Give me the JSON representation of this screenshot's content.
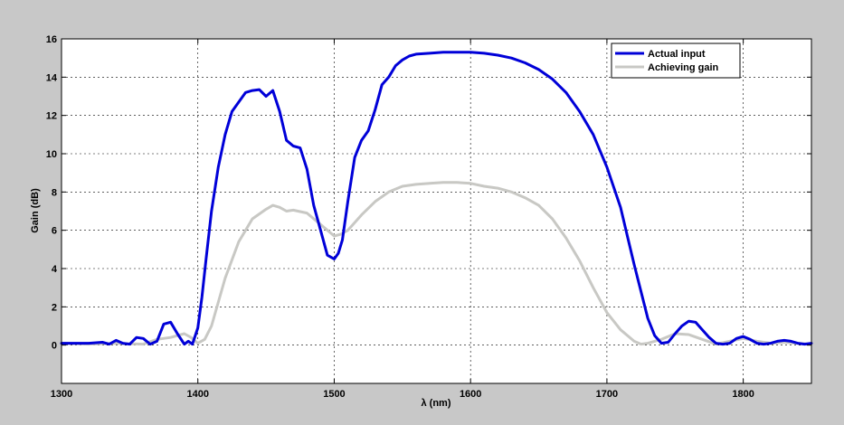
{
  "chart_data": {
    "type": "line",
    "title": "",
    "xlabel": "λ (nm)",
    "ylabel": "Gain (dB)",
    "xlim": [
      1300,
      1850
    ],
    "ylim": [
      -2,
      16
    ],
    "xticks": [
      1300,
      1400,
      1500,
      1600,
      1700,
      1800
    ],
    "yticks": [
      0,
      2,
      4,
      6,
      8,
      10,
      12,
      14,
      16
    ],
    "grid": true,
    "legend_position": "top-right",
    "series": [
      {
        "name": "Actual input",
        "color": "#0000d8",
        "x": [
          1300,
          1310,
          1320,
          1330,
          1335,
          1340,
          1345,
          1350,
          1355,
          1360,
          1365,
          1370,
          1375,
          1380,
          1385,
          1390,
          1393,
          1396,
          1400,
          1403,
          1406,
          1410,
          1415,
          1420,
          1425,
          1430,
          1435,
          1440,
          1445,
          1450,
          1455,
          1460,
          1465,
          1470,
          1475,
          1480,
          1485,
          1490,
          1495,
          1500,
          1503,
          1506,
          1510,
          1515,
          1520,
          1525,
          1530,
          1535,
          1540,
          1545,
          1550,
          1555,
          1560,
          1570,
          1580,
          1590,
          1600,
          1610,
          1620,
          1630,
          1640,
          1650,
          1660,
          1670,
          1680,
          1690,
          1700,
          1710,
          1715,
          1720,
          1725,
          1730,
          1735,
          1740,
          1745,
          1750,
          1755,
          1760,
          1765,
          1770,
          1775,
          1780,
          1785,
          1790,
          1795,
          1800,
          1805,
          1810,
          1815,
          1820,
          1825,
          1830,
          1835,
          1840,
          1845,
          1850
        ],
        "values": [
          0.1,
          0.1,
          0.1,
          0.15,
          0.05,
          0.25,
          0.1,
          0.05,
          0.4,
          0.35,
          0.05,
          0.2,
          1.1,
          1.2,
          0.6,
          0.05,
          0.2,
          0.05,
          0.9,
          2.5,
          4.5,
          7.0,
          9.3,
          11.0,
          12.2,
          12.7,
          13.2,
          13.3,
          13.35,
          13.0,
          13.3,
          12.2,
          10.7,
          10.4,
          10.3,
          9.2,
          7.3,
          6.0,
          4.7,
          4.5,
          4.8,
          5.5,
          7.5,
          9.8,
          10.7,
          11.2,
          12.3,
          13.6,
          14.0,
          14.6,
          14.9,
          15.1,
          15.2,
          15.25,
          15.3,
          15.3,
          15.3,
          15.25,
          15.15,
          15.0,
          14.75,
          14.4,
          13.9,
          13.2,
          12.2,
          11.0,
          9.3,
          7.2,
          5.7,
          4.2,
          2.8,
          1.4,
          0.5,
          0.1,
          0.15,
          0.6,
          1.0,
          1.25,
          1.2,
          0.8,
          0.4,
          0.1,
          0.05,
          0.1,
          0.35,
          0.45,
          0.3,
          0.1,
          0.05,
          0.1,
          0.2,
          0.25,
          0.2,
          0.1,
          0.05,
          0.1
        ]
      },
      {
        "name": "Achieving gain",
        "color": "#c8c8c4",
        "x": [
          1300,
          1320,
          1340,
          1360,
          1370,
          1380,
          1390,
          1395,
          1400,
          1405,
          1410,
          1420,
          1430,
          1440,
          1450,
          1455,
          1460,
          1465,
          1470,
          1480,
          1490,
          1500,
          1505,
          1510,
          1520,
          1530,
          1540,
          1550,
          1560,
          1570,
          1580,
          1590,
          1600,
          1610,
          1620,
          1630,
          1640,
          1650,
          1660,
          1670,
          1680,
          1690,
          1700,
          1710,
          1720,
          1725,
          1730,
          1740,
          1750,
          1760,
          1770,
          1780,
          1790,
          1800,
          1810,
          1820,
          1830,
          1840,
          1850
        ],
        "values": [
          0.1,
          0.05,
          0.1,
          0.05,
          0.3,
          0.4,
          0.6,
          0.4,
          0.1,
          0.3,
          1.0,
          3.5,
          5.4,
          6.6,
          7.1,
          7.3,
          7.2,
          7.0,
          7.05,
          6.9,
          6.3,
          5.7,
          5.8,
          6.0,
          6.8,
          7.5,
          8.0,
          8.3,
          8.4,
          8.45,
          8.5,
          8.5,
          8.45,
          8.3,
          8.2,
          8.0,
          7.7,
          7.3,
          6.6,
          5.6,
          4.4,
          3.0,
          1.7,
          0.8,
          0.2,
          0.05,
          0.1,
          0.3,
          0.6,
          0.55,
          0.3,
          0.05,
          0.2,
          0.35,
          0.2,
          0.1,
          0.15,
          0.1,
          0.05
        ]
      }
    ]
  }
}
